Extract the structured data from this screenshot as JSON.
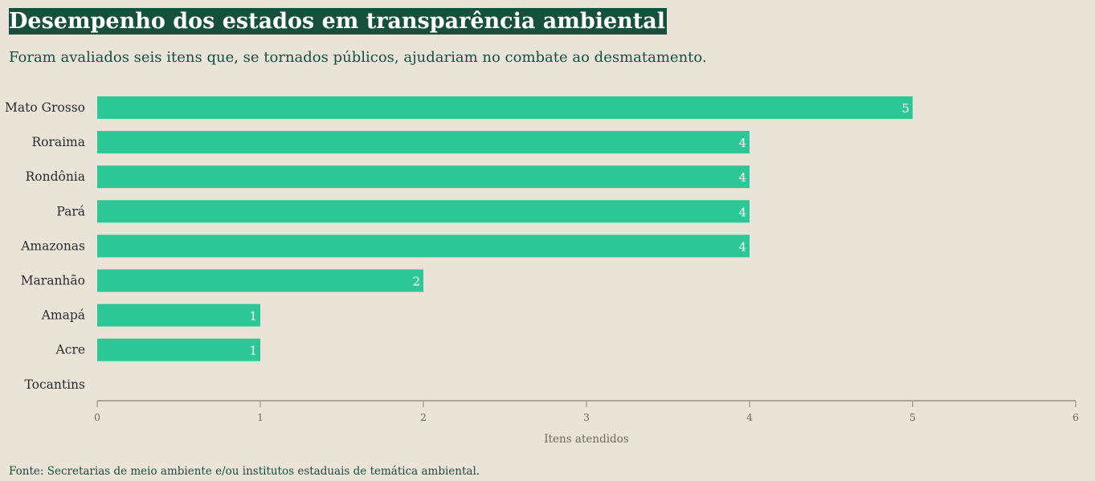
{
  "header": {
    "title": "Desempenho dos estados em transparência ambiental",
    "subtitle": "Foram avaliados seis itens que, se tornados públicos, ajudariam no combate ao desmatamento."
  },
  "footer": {
    "source": "Fonte: Secretarias de meio ambiente e/ou institutos estaduais de temática ambiental."
  },
  "colors": {
    "bar": "#2dc695",
    "title_bg": "#16503d",
    "axis": "#a9a59c",
    "text": "#2b2b2b"
  },
  "chart_data": {
    "type": "bar",
    "orientation": "horizontal",
    "categories": [
      "Mato Grosso",
      "Roraima",
      "Rondônia",
      "Pará",
      "Amazonas",
      "Maranhão",
      "Amapá",
      "Acre",
      "Tocantins"
    ],
    "values": [
      5,
      4,
      4,
      4,
      4,
      2,
      1,
      1,
      0
    ],
    "xlabel": "Itens atendidos",
    "ylabel": "",
    "xlim": [
      0,
      6
    ],
    "xticks": [
      0,
      1,
      2,
      3,
      4,
      5,
      6
    ],
    "data_labels": true,
    "grid": false
  }
}
